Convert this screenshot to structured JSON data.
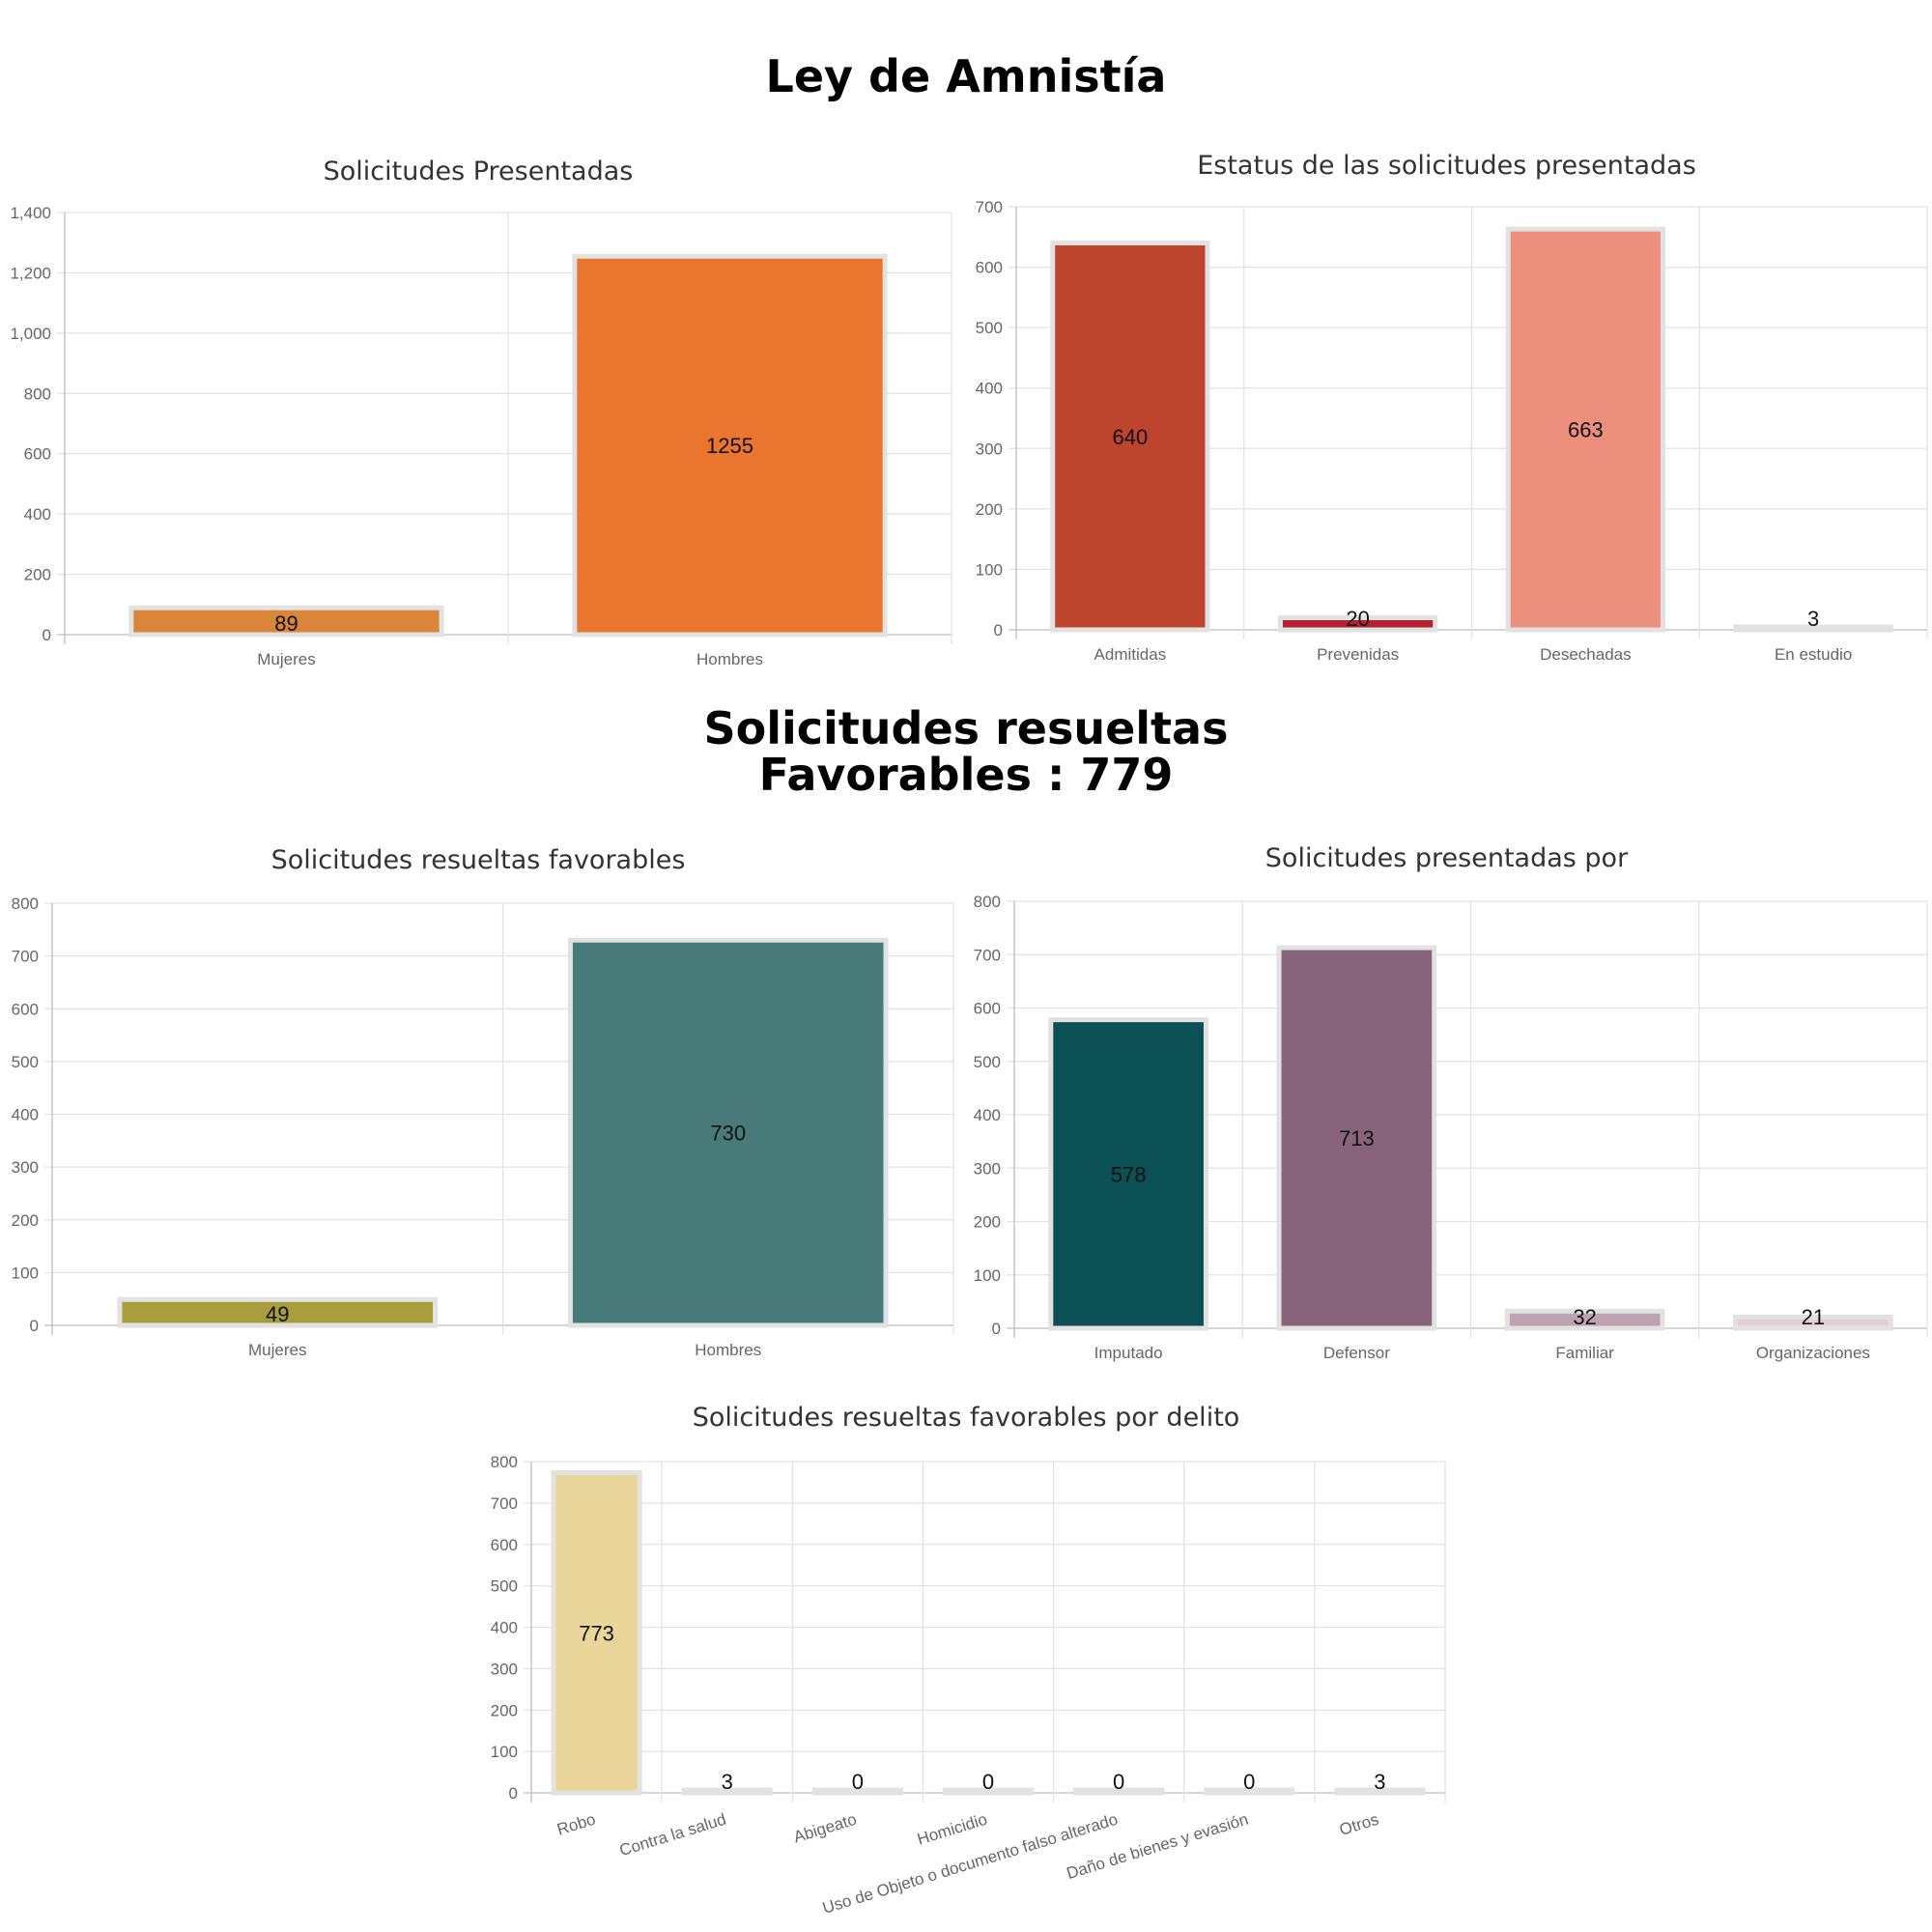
{
  "page": {
    "title": "Ley de Amnistía",
    "section_title_line1": "Solicitudes resueltas",
    "section_title_line2": "Favorables : 779"
  },
  "chart_data": [
    {
      "id": "presentadas",
      "type": "bar",
      "title": "Solicitudes Presentadas",
      "categories": [
        "Mujeres",
        "Hombres"
      ],
      "values": [
        89,
        1255
      ],
      "value_labels": [
        "89",
        "1255"
      ],
      "colors": [
        "#D9863A",
        "#EA752F"
      ],
      "ylim": [
        0,
        1400
      ],
      "yticks": [
        0,
        200,
        400,
        600,
        800,
        1000,
        1200,
        1400
      ],
      "ytick_labels": [
        "0",
        "200",
        "400",
        "600",
        "800",
        "1,000",
        "1,200",
        "1,400"
      ],
      "grid": true,
      "xlabel": "",
      "ylabel": ""
    },
    {
      "id": "estatus",
      "type": "bar",
      "title": "Estatus de las solicitudes presentadas",
      "categories": [
        "Admitidas",
        "Prevenidas",
        "Desechadas",
        "En estudio"
      ],
      "values": [
        640,
        20,
        663,
        3
      ],
      "value_labels": [
        "640",
        "20",
        "663",
        "3"
      ],
      "colors": [
        "#BD452E",
        "#B52030",
        "#EC8F7C",
        "#E8B2C0"
      ],
      "ylim": [
        0,
        700
      ],
      "yticks": [
        0,
        100,
        200,
        300,
        400,
        500,
        600,
        700
      ],
      "ytick_labels": [
        "0",
        "100",
        "200",
        "300",
        "400",
        "500",
        "600",
        "700"
      ],
      "grid": true,
      "xlabel": "",
      "ylabel": ""
    },
    {
      "id": "favorables",
      "type": "bar",
      "title": "Solicitudes resueltas favorables",
      "categories": [
        "Mujeres",
        "Hombres"
      ],
      "values": [
        49,
        730
      ],
      "value_labels": [
        "49",
        "730"
      ],
      "colors": [
        "#A89E3C",
        "#487A7A"
      ],
      "ylim": [
        0,
        800
      ],
      "yticks": [
        0,
        100,
        200,
        300,
        400,
        500,
        600,
        700,
        800
      ],
      "ytick_labels": [
        "0",
        "100",
        "200",
        "300",
        "400",
        "500",
        "600",
        "700",
        "800"
      ],
      "grid": true,
      "xlabel": "",
      "ylabel": ""
    },
    {
      "id": "presentadas-por",
      "type": "bar",
      "title": "Solicitudes presentadas por",
      "categories": [
        "Imputado",
        "Defensor",
        "Familiar",
        "Organizaciones"
      ],
      "values": [
        578,
        713,
        32,
        21
      ],
      "value_labels": [
        "578",
        "713",
        "32",
        "21"
      ],
      "colors": [
        "#0A5055",
        "#876479",
        "#BEA3B0",
        "#E8CDD8"
      ],
      "ylim": [
        0,
        800
      ],
      "yticks": [
        0,
        100,
        200,
        300,
        400,
        500,
        600,
        700,
        800
      ],
      "ytick_labels": [
        "0",
        "100",
        "200",
        "300",
        "400",
        "500",
        "600",
        "700",
        "800"
      ],
      "grid": true,
      "xlabel": "",
      "ylabel": ""
    },
    {
      "id": "por-delito",
      "type": "bar",
      "title": "Solicitudes resueltas favorables por delito",
      "categories": [
        "Robo",
        "Contra la salud",
        "Abigeato",
        "Homicidio",
        "Uso de Objeto o documento falso alterado",
        "Daño de bienes y evasión",
        "Otros"
      ],
      "values": [
        773,
        3,
        0,
        0,
        0,
        0,
        3
      ],
      "value_labels": [
        "773",
        "3",
        "0",
        "0",
        "0",
        "0",
        "3"
      ],
      "colors": [
        "#EAD59A",
        "#E0E0E0",
        "#E0E0E0",
        "#E0E0E0",
        "#E0E0E0",
        "#E0E0E0",
        "#E0E0E0"
      ],
      "ylim": [
        0,
        800
      ],
      "yticks": [
        0,
        100,
        200,
        300,
        400,
        500,
        600,
        700,
        800
      ],
      "ytick_labels": [
        "0",
        "100",
        "200",
        "300",
        "400",
        "500",
        "600",
        "700",
        "800"
      ],
      "grid": true,
      "xlabel": "",
      "ylabel": ""
    }
  ]
}
